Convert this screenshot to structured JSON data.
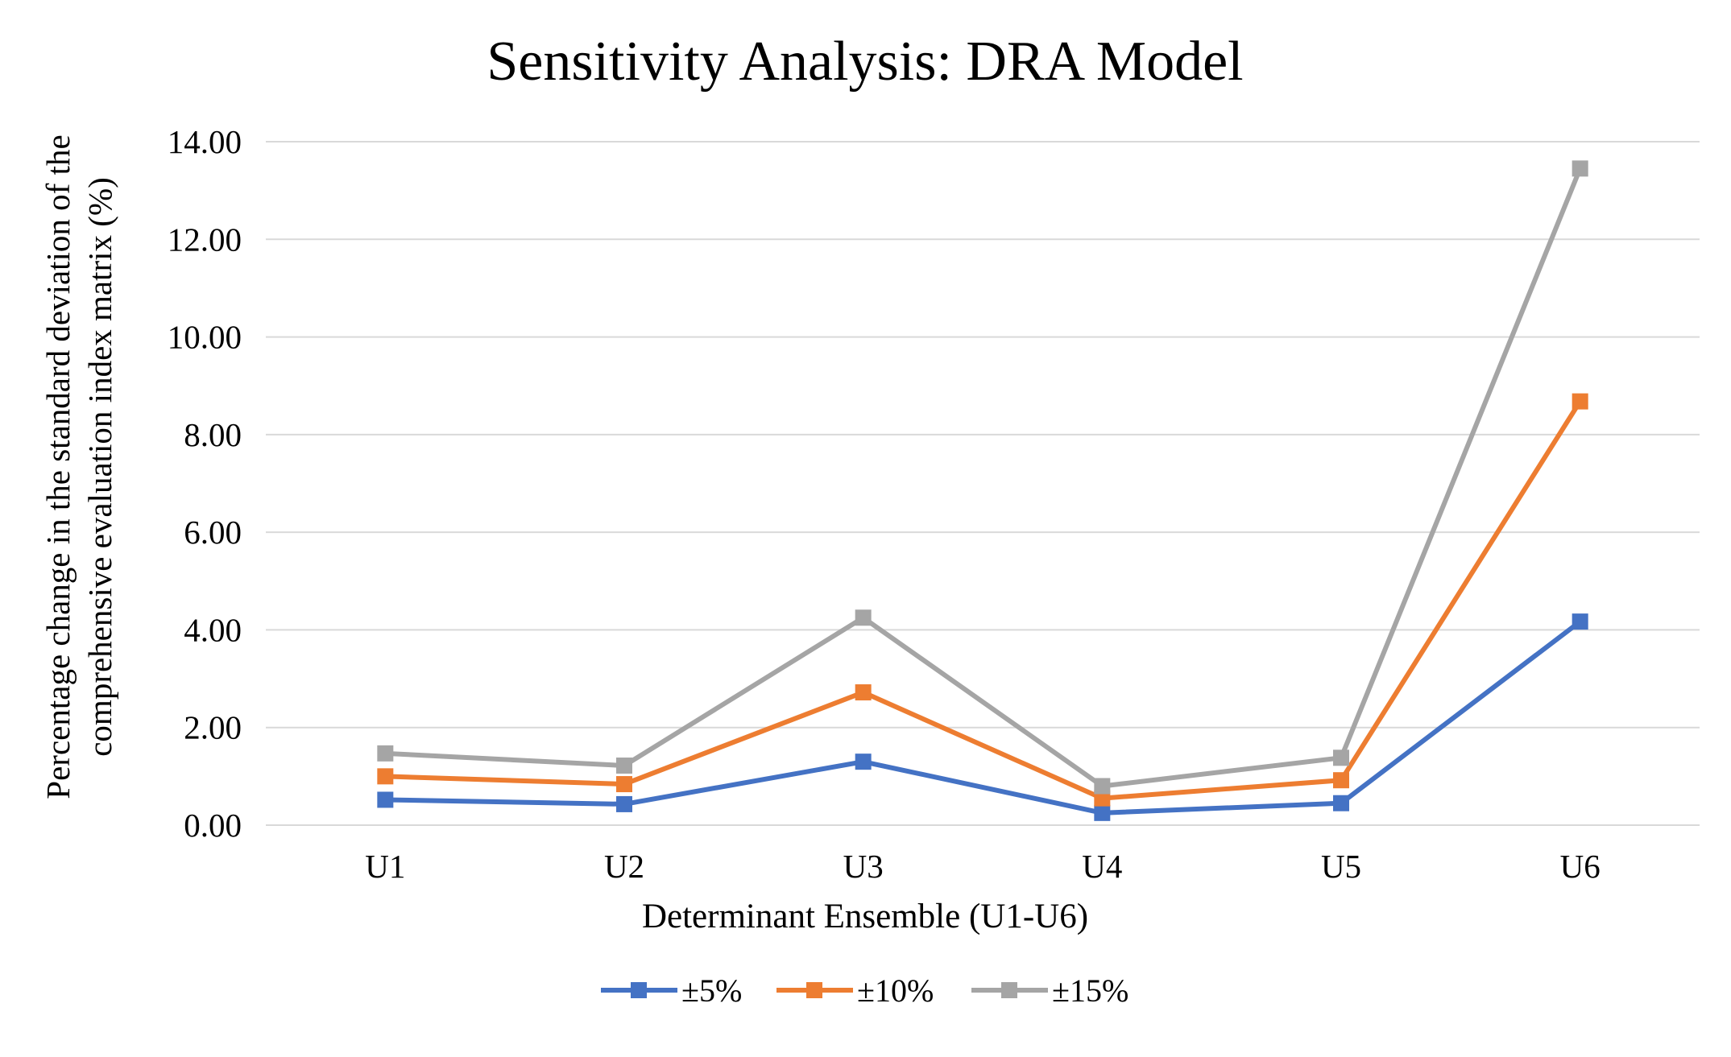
{
  "chart_data": {
    "type": "line",
    "title": "Sensitivity Analysis: DRA Model",
    "xlabel": "Determinant Ensemble (U1-U6)",
    "ylabel_lines": [
      "Percentage change in the standard deviation of the",
      "comprehensive evaluation index matrix (%)"
    ],
    "categories": [
      "U1",
      "U2",
      "U3",
      "U4",
      "U5",
      "U6"
    ],
    "ylim": [
      0,
      14
    ],
    "yticks": [
      "0.00",
      "2.00",
      "4.00",
      "6.00",
      "8.00",
      "10.00",
      "12.00",
      "14.00"
    ],
    "grid": true,
    "legend_position": "bottom-center",
    "series": [
      {
        "name": "±5%",
        "color": "#4472C4",
        "values": [
          0.52,
          0.43,
          1.3,
          0.25,
          0.45,
          4.17
        ]
      },
      {
        "name": "±10%",
        "color": "#ED7D31",
        "values": [
          1.0,
          0.84,
          2.72,
          0.55,
          0.92,
          8.68
        ]
      },
      {
        "name": "±15%",
        "color": "#A5A5A5",
        "values": [
          1.47,
          1.22,
          4.25,
          0.8,
          1.38,
          13.45
        ]
      }
    ]
  }
}
